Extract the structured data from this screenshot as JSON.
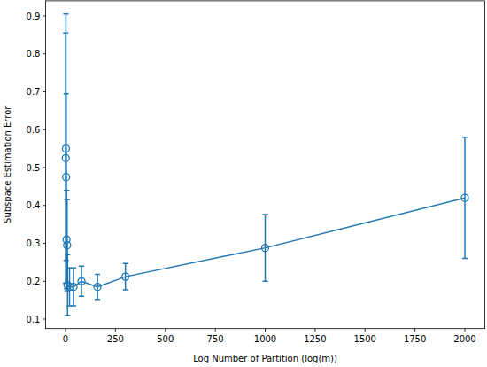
{
  "chart_data": {
    "type": "line",
    "x_label": "Log Number of Partition (log(m))",
    "y_label": "Subspace Estimation Error",
    "x": [
      1,
      2,
      3,
      5,
      8,
      10,
      20,
      40,
      80,
      160,
      300,
      1000,
      2000
    ],
    "series": [
      {
        "color": "#1f77b4",
        "marker": "circle",
        "values": [
          0.525,
          0.55,
          0.475,
          0.31,
          0.295,
          0.19,
          0.185,
          0.185,
          0.2,
          0.185,
          0.212,
          0.288,
          0.42
        ],
        "errors": [
          0.33,
          0.355,
          0.22,
          0.13,
          0.12,
          0.08,
          0.05,
          0.05,
          0.04,
          0.033,
          0.035,
          0.088,
          0.16
        ]
      }
    ],
    "xlim": [
      -100,
      2100
    ],
    "xticks": [
      0,
      250,
      500,
      750,
      1000,
      1250,
      1500,
      1750,
      2000
    ],
    "ylim": [
      0.075,
      0.94
    ],
    "yticks": [
      0.1,
      0.2,
      0.3,
      0.4,
      0.5,
      0.6,
      0.7,
      0.8,
      0.9
    ],
    "grid": false
  }
}
